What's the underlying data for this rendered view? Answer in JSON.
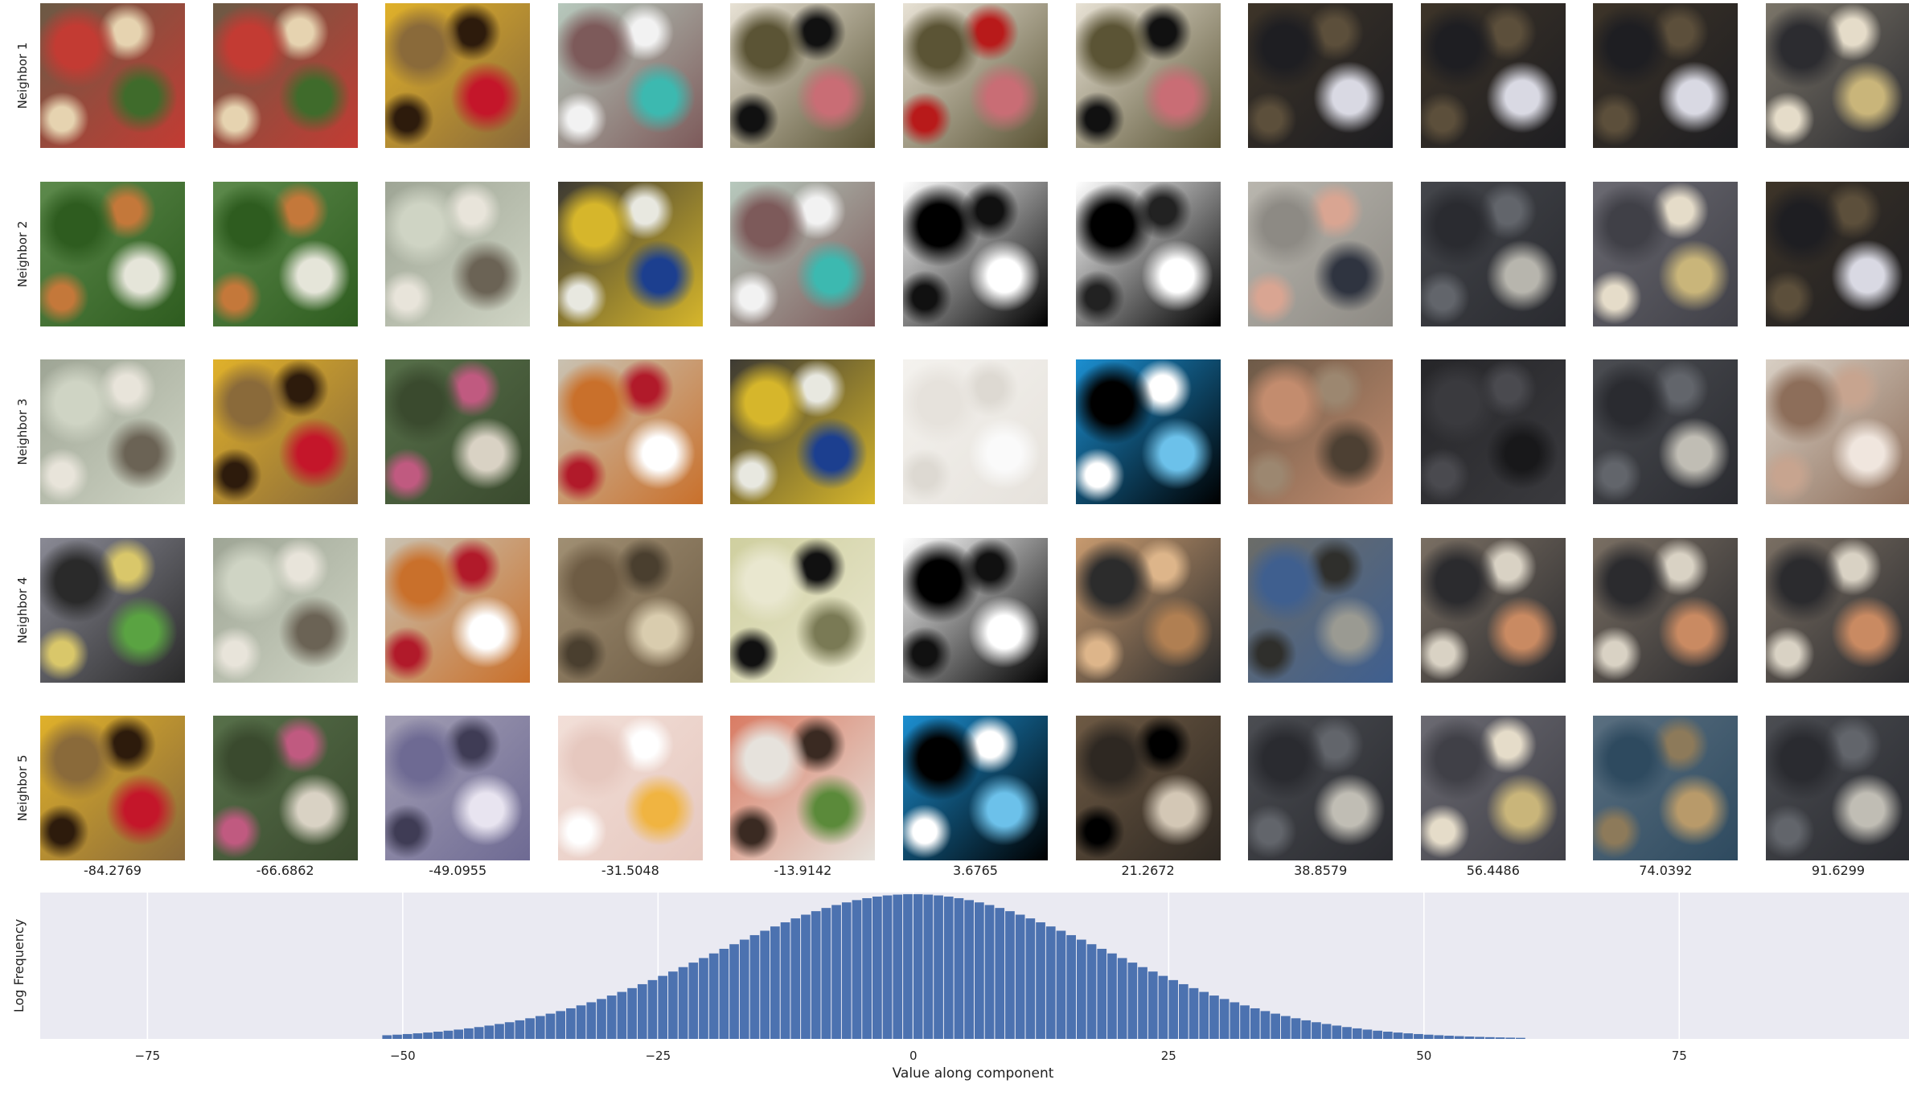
{
  "rows": [
    "Neighbor 1",
    "Neighbor 2",
    "Neighbor 3",
    "Neighbor 4",
    "Neighbor 5"
  ],
  "columns": [
    "-84.2769",
    "-66.6862",
    "-49.0955",
    "-31.5048",
    "-13.9142",
    "3.6765",
    "21.2672",
    "38.8579",
    "56.4486",
    "74.0392",
    "91.6299"
  ],
  "thumbnails": [
    [
      {
        "bg": "#6b5a45",
        "accents": [
          "#c33b33",
          "#3f6b2b",
          "#e6d3b0"
        ]
      },
      {
        "bg": "#6b5a45",
        "accents": [
          "#c33b33",
          "#3f6b2b",
          "#e6d3b0"
        ]
      },
      {
        "bg": "#e0b12a",
        "accents": [
          "#8a6a3a",
          "#c4162a",
          "#2d1b0c"
        ]
      },
      {
        "bg": "#b7c9bd",
        "accents": [
          "#7d5a5a",
          "#3cb9b0",
          "#f2f2f2"
        ]
      },
      {
        "bg": "#e8e2d5",
        "accents": [
          "#5b5435",
          "#c96d75",
          "#111111"
        ]
      },
      {
        "bg": "#e8e2d5",
        "accents": [
          "#5b5435",
          "#c96d75",
          "#b81a1a"
        ]
      },
      {
        "bg": "#e8e2d5",
        "accents": [
          "#5b5435",
          "#c96d75",
          "#111111"
        ]
      },
      {
        "bg": "#3d3428",
        "accents": [
          "#1e1e22",
          "#d9d9e3",
          "#5c4f3b"
        ]
      },
      {
        "bg": "#3d3428",
        "accents": [
          "#1e1e22",
          "#d9d9e3",
          "#5c4f3b"
        ]
      },
      {
        "bg": "#3d3428",
        "accents": [
          "#1e1e22",
          "#d9d9e3",
          "#5c4f3b"
        ]
      },
      {
        "bg": "#7b7569",
        "accents": [
          "#2c2c30",
          "#c9b57a",
          "#e5dcc9"
        ]
      }
    ],
    [
      {
        "bg": "#5d8a4c",
        "accents": [
          "#2e5c1f",
          "#e5e5d9",
          "#c4783a"
        ]
      },
      {
        "bg": "#5d8a4c",
        "accents": [
          "#2e5c1f",
          "#e5e5d9",
          "#c4783a"
        ]
      },
      {
        "bg": "#9ea595",
        "accents": [
          "#cfd4c4",
          "#6b6355",
          "#e8e4da"
        ]
      },
      {
        "bg": "#3d3a33",
        "accents": [
          "#d6b62b",
          "#1c3f8f",
          "#e8e8e0"
        ]
      },
      {
        "bg": "#b7c9bd",
        "accents": [
          "#7d5a5a",
          "#3cb9b0",
          "#f2f2f2"
        ]
      },
      {
        "bg": "#ffffff",
        "accents": [
          "#000000",
          "#ffffff",
          "#111111"
        ]
      },
      {
        "bg": "#ffffff",
        "accents": [
          "#000000",
          "#ffffff",
          "#222222"
        ]
      },
      {
        "bg": "#b9b6ae",
        "accents": [
          "#8d8a84",
          "#2f3440",
          "#d9a592"
        ]
      },
      {
        "bg": "#44464b",
        "accents": [
          "#2a2b30",
          "#b7b5ad",
          "#62656b"
        ]
      },
      {
        "bg": "#6b6a72",
        "accents": [
          "#404047",
          "#c9b57a",
          "#e5dcc9"
        ]
      },
      {
        "bg": "#3d3428",
        "accents": [
          "#1e1e22",
          "#d9d9e3",
          "#5c4f3b"
        ]
      }
    ],
    [
      {
        "bg": "#9ea595",
        "accents": [
          "#cfd4c4",
          "#6b6355",
          "#e8e4da"
        ]
      },
      {
        "bg": "#e0b12a",
        "accents": [
          "#8a6a3a",
          "#c4162a",
          "#2d1b0c"
        ]
      },
      {
        "bg": "#57704a",
        "accents": [
          "#3a4a2e",
          "#d9d2c4",
          "#c05a80"
        ]
      },
      {
        "bg": "#c9c2b2",
        "accents": [
          "#c9702b",
          "#ffffff",
          "#b11a2a"
        ]
      },
      {
        "bg": "#3d3a33",
        "accents": [
          "#d6b62b",
          "#1c3f8f",
          "#e8e8e0"
        ]
      },
      {
        "bg": "#f4f2ee",
        "accents": [
          "#e6e2dc",
          "#fafafa",
          "#ddd9d2"
        ]
      },
      {
        "bg": "#1c8fd1",
        "accents": [
          "#000000",
          "#6cc1ea",
          "#ffffff"
        ]
      },
      {
        "bg": "#6d5a48",
        "accents": [
          "#c38c6e",
          "#4d4033",
          "#9c8770"
        ]
      },
      {
        "bg": "#262629",
        "accents": [
          "#3a3a3e",
          "#18181a",
          "#4a4a4f"
        ]
      },
      {
        "bg": "#4b4d52",
        "accents": [
          "#2a2b30",
          "#c0bdb4",
          "#62656b"
        ]
      },
      {
        "bg": "#d8cfc4",
        "accents": [
          "#8d6e5a",
          "#f0e6de",
          "#c7a48f"
        ]
      }
    ],
    [
      {
        "bg": "#8a8a95",
        "accents": [
          "#2a2a2a",
          "#5aa342",
          "#d9c76a"
        ]
      },
      {
        "bg": "#9ea595",
        "accents": [
          "#cfd4c4",
          "#6b6355",
          "#e8e4da"
        ]
      },
      {
        "bg": "#c9c2b2",
        "accents": [
          "#c9702b",
          "#ffffff",
          "#b11a2a"
        ]
      },
      {
        "bg": "#a08f73",
        "accents": [
          "#6e5c44",
          "#d9ccae",
          "#4a3f2f"
        ]
      },
      {
        "bg": "#cfcf9f",
        "accents": [
          "#e9e7cf",
          "#7a7a55",
          "#111111"
        ]
      },
      {
        "bg": "#ffffff",
        "accents": [
          "#000000",
          "#ffffff",
          "#111111"
        ]
      },
      {
        "bg": "#c79a6f",
        "accents": [
          "#2c2c2c",
          "#b07f52",
          "#ddb58a"
        ]
      },
      {
        "bg": "#6b6c68",
        "accents": [
          "#3f5f8f",
          "#9a9a92",
          "#2f2f2c"
        ]
      },
      {
        "bg": "#7a6f63",
        "accents": [
          "#2b2b2e",
          "#c98a62",
          "#d9d2c4"
        ]
      },
      {
        "bg": "#7a6f63",
        "accents": [
          "#2b2b2e",
          "#c98a62",
          "#d9d2c4"
        ]
      },
      {
        "bg": "#7a6f63",
        "accents": [
          "#2b2b2e",
          "#c98a62",
          "#d9d2c4"
        ]
      }
    ],
    [
      {
        "bg": "#e0b12a",
        "accents": [
          "#8a6a3a",
          "#c4162a",
          "#2d1b0c"
        ]
      },
      {
        "bg": "#57704a",
        "accents": [
          "#3a4a2e",
          "#d9d2c4",
          "#c05a80"
        ]
      },
      {
        "bg": "#a39fb4",
        "accents": [
          "#6e6a93",
          "#e8e4f0",
          "#3f3c55"
        ]
      },
      {
        "bg": "#f2dfd8",
        "accents": [
          "#e6c8bf",
          "#f0b441",
          "#ffffff"
        ]
      },
      {
        "bg": "#d97b63",
        "accents": [
          "#e6e2dc",
          "#5b8a3a",
          "#3a2a22"
        ]
      },
      {
        "bg": "#1c8fd1",
        "accents": [
          "#000000",
          "#6cc1ea",
          "#ffffff"
        ]
      },
      {
        "bg": "#6e5a44",
        "accents": [
          "#2e2822",
          "#d3c7b5",
          "#000000"
        ]
      },
      {
        "bg": "#4b4d52",
        "accents": [
          "#2a2b30",
          "#c0bdb4",
          "#62656b"
        ]
      },
      {
        "bg": "#6b6a72",
        "accents": [
          "#404047",
          "#c9b57a",
          "#e5dcc9"
        ]
      },
      {
        "bg": "#5a6f80",
        "accents": [
          "#2e4a5f",
          "#b89a6a",
          "#8d7a5a"
        ]
      },
      {
        "bg": "#4b4d52",
        "accents": [
          "#2a2b30",
          "#c0bdb4",
          "#62656b"
        ]
      }
    ]
  ],
  "chart_data": {
    "type": "bar",
    "xlabel": "Value along component",
    "ylabel": "Log Frequency",
    "xlim": [
      -85.5,
      97.5
    ],
    "xticks": [
      -75,
      -50,
      -25,
      0,
      25,
      50,
      75
    ],
    "xtick_labels": [
      "−75",
      "−50",
      "−25",
      "0",
      "25",
      "50",
      "75"
    ],
    "grid": true,
    "bar_color": "#4c72b0",
    "background": "#eaeaf2",
    "bins": {
      "start": -52,
      "width": 1,
      "count": 112,
      "distribution": "gaussian",
      "mean": 0,
      "std": 19,
      "peak": 1.0
    }
  }
}
